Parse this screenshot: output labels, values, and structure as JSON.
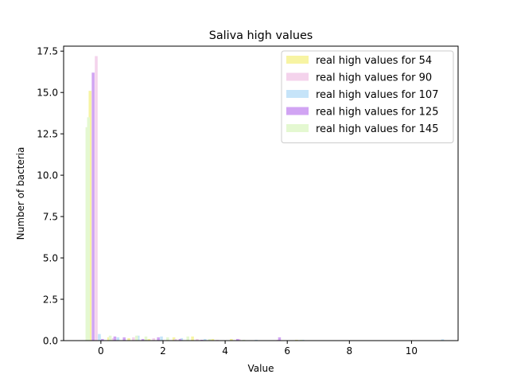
{
  "chart_data": {
    "type": "bar",
    "title": "Saliva high values",
    "xlabel": "Value",
    "ylabel": "Number of bacteria",
    "xlim": [
      -1.2,
      11.5
    ],
    "ylim": [
      0,
      17.8
    ],
    "xticks": [
      0,
      2,
      4,
      6,
      8,
      10
    ],
    "yticks": [
      0.0,
      2.5,
      5.0,
      7.5,
      10.0,
      12.5,
      15.0,
      17.5
    ],
    "xtick_labels": [
      "0",
      "2",
      "4",
      "6",
      "8",
      "10"
    ],
    "ytick_labels": [
      "0.0",
      "2.5",
      "5.0",
      "7.5",
      "10.0",
      "12.5",
      "15.0",
      "17.5"
    ],
    "legend_position": "top-right",
    "grid": false,
    "bar_width": 0.09,
    "series": [
      {
        "name": "real high values for 54",
        "color": "#f7f4a3",
        "x": [
          -0.35,
          0.25,
          0.9,
          1.55,
          2.35,
          2.95,
          3.6,
          4.2,
          6.3
        ],
        "values": [
          15.1,
          0.2,
          0.15,
          0.1,
          0.2,
          0.25,
          0.1,
          0.1,
          0.05
        ]
      },
      {
        "name": "real high values for 90",
        "color": "#f4d3ec",
        "x": [
          -0.15,
          0.4,
          1.05,
          1.7,
          2.4,
          3.1,
          3.75,
          4.45,
          5.7
        ],
        "values": [
          17.2,
          0.15,
          0.2,
          0.15,
          0.1,
          0.1,
          0.05,
          0.1,
          0.05
        ]
      },
      {
        "name": "real high values for 107",
        "color": "#c6e4f9",
        "x": [
          -0.05,
          0.55,
          1.2,
          1.95,
          2.6,
          3.35,
          5.0,
          6.5,
          11.0
        ],
        "values": [
          0.3,
          0.2,
          0.3,
          0.25,
          0.15,
          0.1,
          0.05,
          0.05,
          0.08
        ]
      },
      {
        "name": "real high values for 125",
        "color": "#d1a4f3",
        "x": [
          -0.25,
          0.45,
          0.75,
          1.35,
          1.85,
          2.55,
          3.25,
          4.4,
          5.75
        ],
        "values": [
          16.2,
          0.25,
          0.2,
          0.1,
          0.2,
          0.1,
          0.05,
          0.1,
          0.2
        ]
      },
      {
        "name": "real high values for 145",
        "color": "#e4f8d1",
        "x": [
          -0.45,
          0.3,
          1.15,
          1.45,
          2.15,
          2.8,
          3.5,
          4.6,
          6.45
        ],
        "values": [
          12.9,
          0.3,
          0.3,
          0.25,
          0.2,
          0.25,
          0.1,
          0.05,
          0.05
        ]
      }
    ],
    "extra_bars": [
      {
        "x": -0.4,
        "value": 13.5,
        "color": "#e4f8d1"
      },
      {
        "x": -0.05,
        "value": 0.4,
        "color": "#c6e4f9"
      },
      {
        "x": 0.05,
        "value": 0.1,
        "color": "#d1a4f3"
      }
    ]
  }
}
